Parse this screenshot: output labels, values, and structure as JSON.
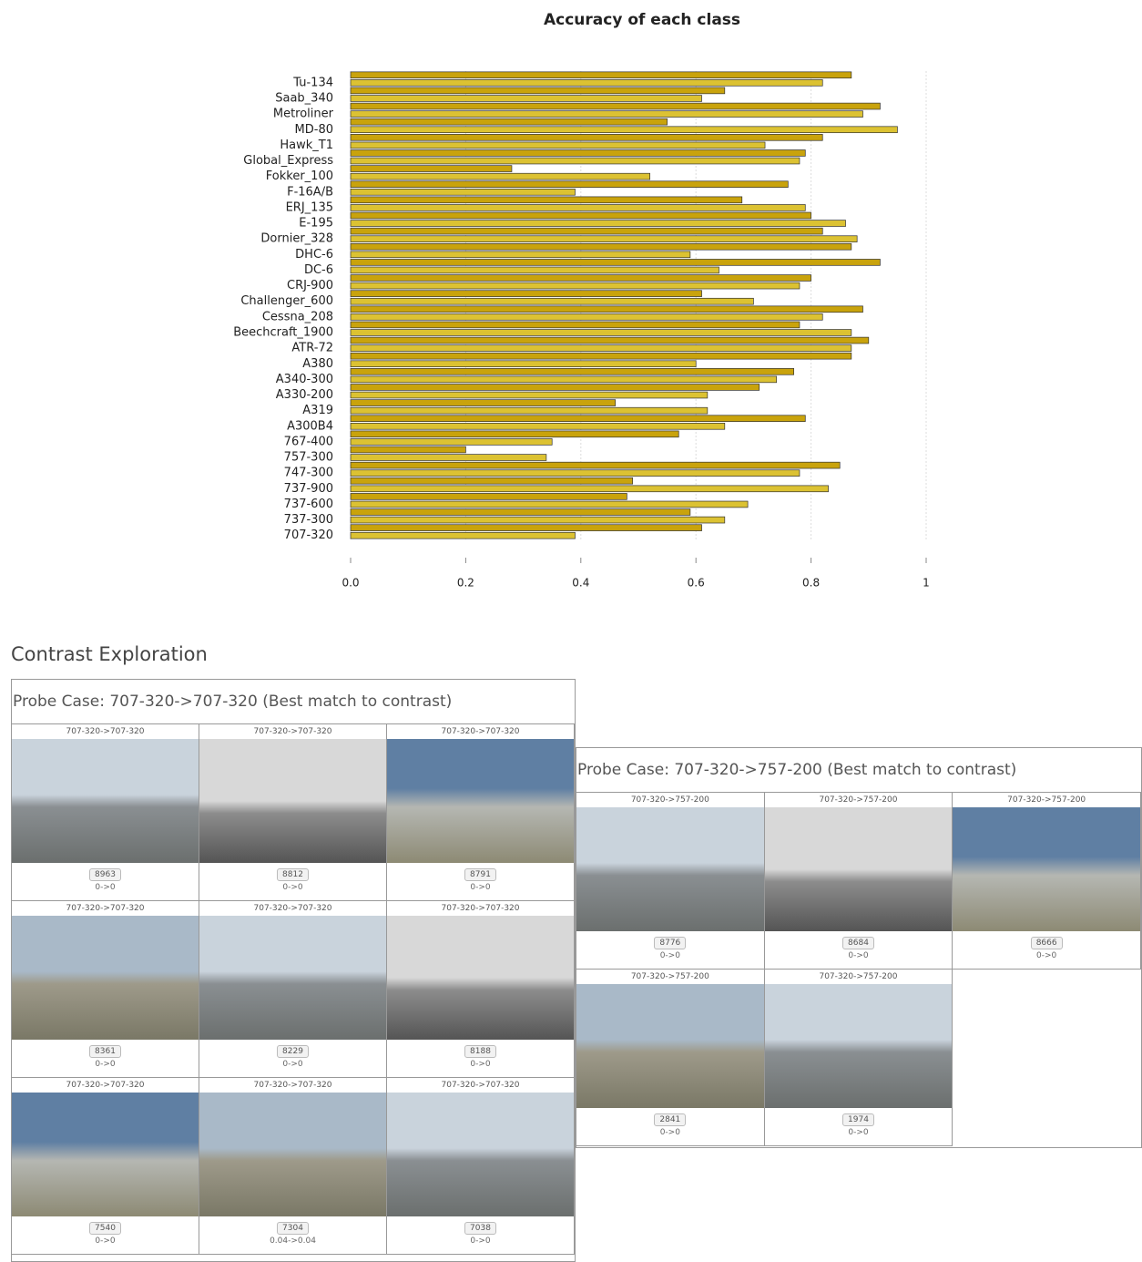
{
  "chart_data": {
    "type": "barh",
    "title": "Accuracy of each class",
    "categories": [
      null,
      "Tu-134",
      null,
      "Saab_340",
      null,
      "Metroliner",
      null,
      "MD-80",
      null,
      "Hawk_T1",
      null,
      "Global_Express",
      null,
      "Fokker_100",
      null,
      "F-16A/B",
      null,
      "ERJ_135",
      null,
      "E-195",
      null,
      "Dornier_328",
      null,
      "DHC-6",
      null,
      "DC-6",
      null,
      "CRJ-900",
      null,
      "Challenger_600",
      null,
      "Cessna_208",
      null,
      "Beechcraft_1900",
      null,
      "ATR-72",
      null,
      "A380",
      null,
      "A340-300",
      null,
      "A330-200",
      null,
      "A319",
      null,
      "A300B4",
      null,
      "767-400",
      null,
      "757-300",
      null,
      "747-300",
      null,
      "737-900",
      null,
      "737-600",
      null,
      "737-300",
      null,
      "707-320"
    ],
    "values": [
      0.87,
      0.82,
      0.65,
      0.61,
      0.92,
      0.89,
      0.55,
      0.95,
      0.82,
      0.72,
      0.79,
      0.78,
      0.28,
      0.52,
      0.76,
      0.39,
      0.68,
      0.79,
      0.8,
      0.86,
      0.82,
      0.88,
      0.87,
      0.59,
      0.92,
      0.64,
      0.8,
      0.78,
      0.61,
      0.7,
      0.89,
      0.82,
      0.78,
      0.87,
      0.9,
      0.87,
      0.87,
      0.6,
      0.77,
      0.74,
      0.71,
      0.62,
      0.46,
      0.62,
      0.79,
      0.65,
      0.57,
      0.35,
      0.2,
      0.34,
      0.85,
      0.78,
      0.49,
      0.83,
      0.48,
      0.69,
      0.59,
      0.65,
      0.61,
      0.39
    ],
    "colors": [
      "#c9a30c",
      "#dcc232"
    ],
    "xlim": [
      0,
      1
    ],
    "xticks": [
      {
        "value": 0,
        "label": "0.0"
      },
      0.2,
      0.4,
      0.6,
      0.8,
      1
    ],
    "grid": true
  },
  "contrast": {
    "title": "Contrast Exploration",
    "panels": [
      {
        "title": "Probe Case: 707-320->707-320 (Best match to contrast)",
        "cells": [
          {
            "caption": "707-320->707-320",
            "id": "8963",
            "score": "0->0"
          },
          {
            "caption": "707-320->707-320",
            "id": "8812",
            "score": "0->0"
          },
          {
            "caption": "707-320->707-320",
            "id": "8791",
            "score": "0->0"
          },
          {
            "caption": "707-320->707-320",
            "id": "8361",
            "score": "0->0"
          },
          {
            "caption": "707-320->707-320",
            "id": "8229",
            "score": "0->0"
          },
          {
            "caption": "707-320->707-320",
            "id": "8188",
            "score": "0->0"
          },
          {
            "caption": "707-320->707-320",
            "id": "7540",
            "score": "0->0"
          },
          {
            "caption": "707-320->707-320",
            "id": "7304",
            "score": "0.04->0.04"
          },
          {
            "caption": "707-320->707-320",
            "id": "7038",
            "score": "0->0"
          }
        ]
      },
      {
        "title": "Probe Case: 707-320->757-200 (Best match to contrast)",
        "cells": [
          {
            "caption": "707-320->757-200",
            "id": "8776",
            "score": "0->0"
          },
          {
            "caption": "707-320->757-200",
            "id": "8684",
            "score": "0->0"
          },
          {
            "caption": "707-320->757-200",
            "id": "8666",
            "score": "0->0"
          },
          {
            "caption": "707-320->757-200",
            "id": "2841",
            "score": "0->0"
          },
          {
            "caption": "707-320->757-200",
            "id": "1974",
            "score": "0->0"
          }
        ]
      }
    ]
  }
}
